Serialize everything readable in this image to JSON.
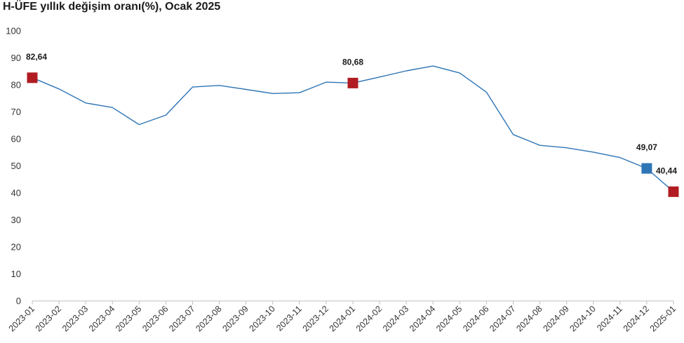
{
  "chart_data": {
    "type": "line",
    "title": "H-ÜFE yıllık değişim oranı(%), Ocak 2025",
    "xlabel": "",
    "ylabel": "",
    "ylim": [
      0,
      100
    ],
    "yticks": [
      0,
      10,
      20,
      30,
      40,
      50,
      60,
      70,
      80,
      90,
      100
    ],
    "grid": false,
    "legend": "none",
    "categories": [
      "2023-01",
      "2023-02",
      "2023-03",
      "2023-04",
      "2023-05",
      "2023-06",
      "2023-07",
      "2023-08",
      "2023-09",
      "2023-10",
      "2023-11",
      "2023-12",
      "2024-01",
      "2024-02",
      "2024-03",
      "2024-04",
      "2024-05",
      "2024-06",
      "2024-07",
      "2024-08",
      "2024-09",
      "2024-10",
      "2024-11",
      "2024-12",
      "2025-01"
    ],
    "series": [
      {
        "values": [
          82.64,
          78.5,
          73.3,
          71.6,
          65.3,
          68.8,
          79.2,
          79.8,
          78.3,
          76.8,
          77.1,
          81.0,
          80.68,
          82.9,
          85.2,
          87.0,
          84.4,
          77.3,
          61.6,
          57.6,
          56.7,
          55.1,
          53.1,
          49.07,
          40.44
        ],
        "color": "#2e75b6"
      }
    ],
    "markers": [
      {
        "index": 0,
        "label": "82,64",
        "color": "#b01c22"
      },
      {
        "index": 12,
        "label": "80,68",
        "color": "#b01c22"
      },
      {
        "index": 23,
        "label": "49,07",
        "color": "#2e75b6"
      },
      {
        "index": 24,
        "label": "40,44",
        "color": "#b01c22"
      }
    ]
  }
}
